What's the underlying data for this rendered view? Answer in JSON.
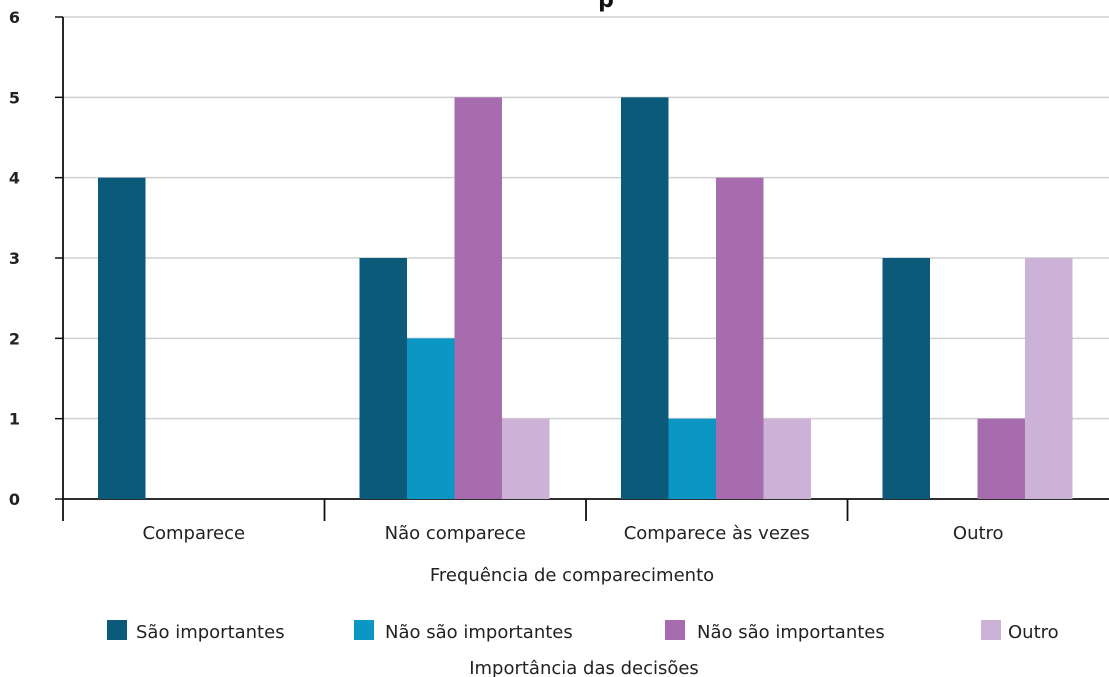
{
  "chart_data": {
    "type": "bar",
    "title_fragment": "p",
    "xlabel": "Frequência de comparecimento",
    "ylabel": "",
    "ylim": [
      0,
      6
    ],
    "yticks": [
      0,
      1,
      2,
      3,
      4,
      5,
      6
    ],
    "grid": true,
    "categories": [
      "Comparece",
      "Não comparece",
      "Comparece às vezes",
      "Outro"
    ],
    "series": [
      {
        "name": "São importantes",
        "color": "#0b5a7a",
        "values": [
          4,
          3,
          5,
          3
        ]
      },
      {
        "name": "Não são importantes",
        "color": "#0b96c3",
        "values": [
          0,
          2,
          1,
          0
        ]
      },
      {
        "name": "Não são importantes",
        "color": "#a66cae",
        "values": [
          0,
          5,
          4,
          1
        ]
      },
      {
        "name": "Outro",
        "color": "#cbb2d6",
        "values": [
          0,
          1,
          1,
          3
        ]
      }
    ],
    "legend_title": "Importância das decisões",
    "legend_position": "bottom"
  }
}
